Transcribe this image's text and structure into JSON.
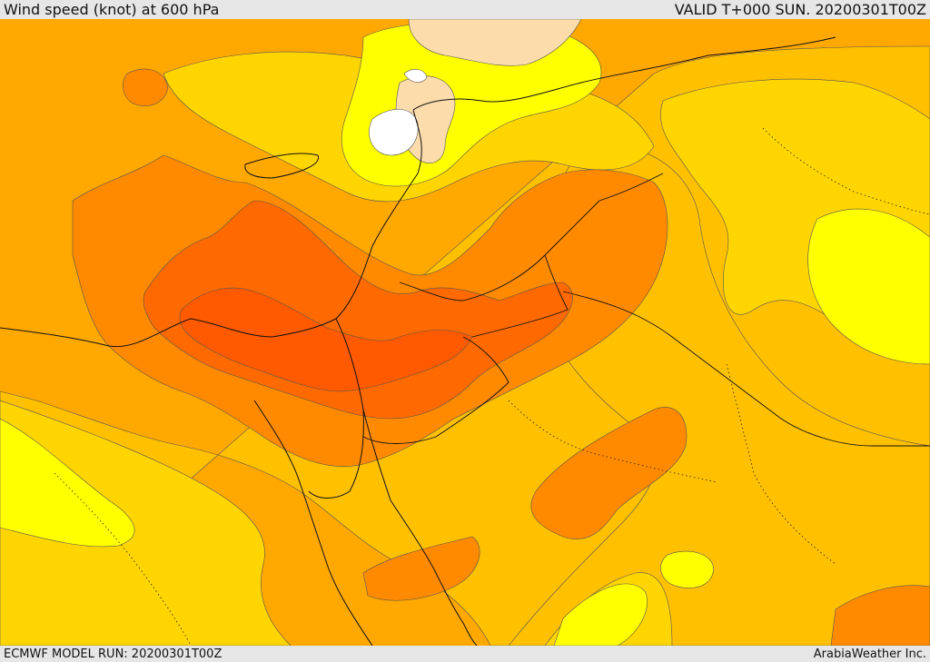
{
  "header": {
    "title": "Wind speed (knot) at 600 hPa",
    "valid": "VALID T+000 SUN. 20200301T00Z"
  },
  "footer": {
    "model_run": "ECMWF MODEL RUN: 20200301T00Z",
    "credit": "ArabiaWeather Inc."
  },
  "palette": {
    "white": "#ffffff",
    "peach": "#fcdcab",
    "yellow": "#ffff00",
    "light_orange": "#ffd500",
    "gold": "#ffc000",
    "orange": "#ffa800",
    "dark_orange": "#ff8a00",
    "red_orange": "#ff6a00",
    "red": "#ff5a00"
  }
}
